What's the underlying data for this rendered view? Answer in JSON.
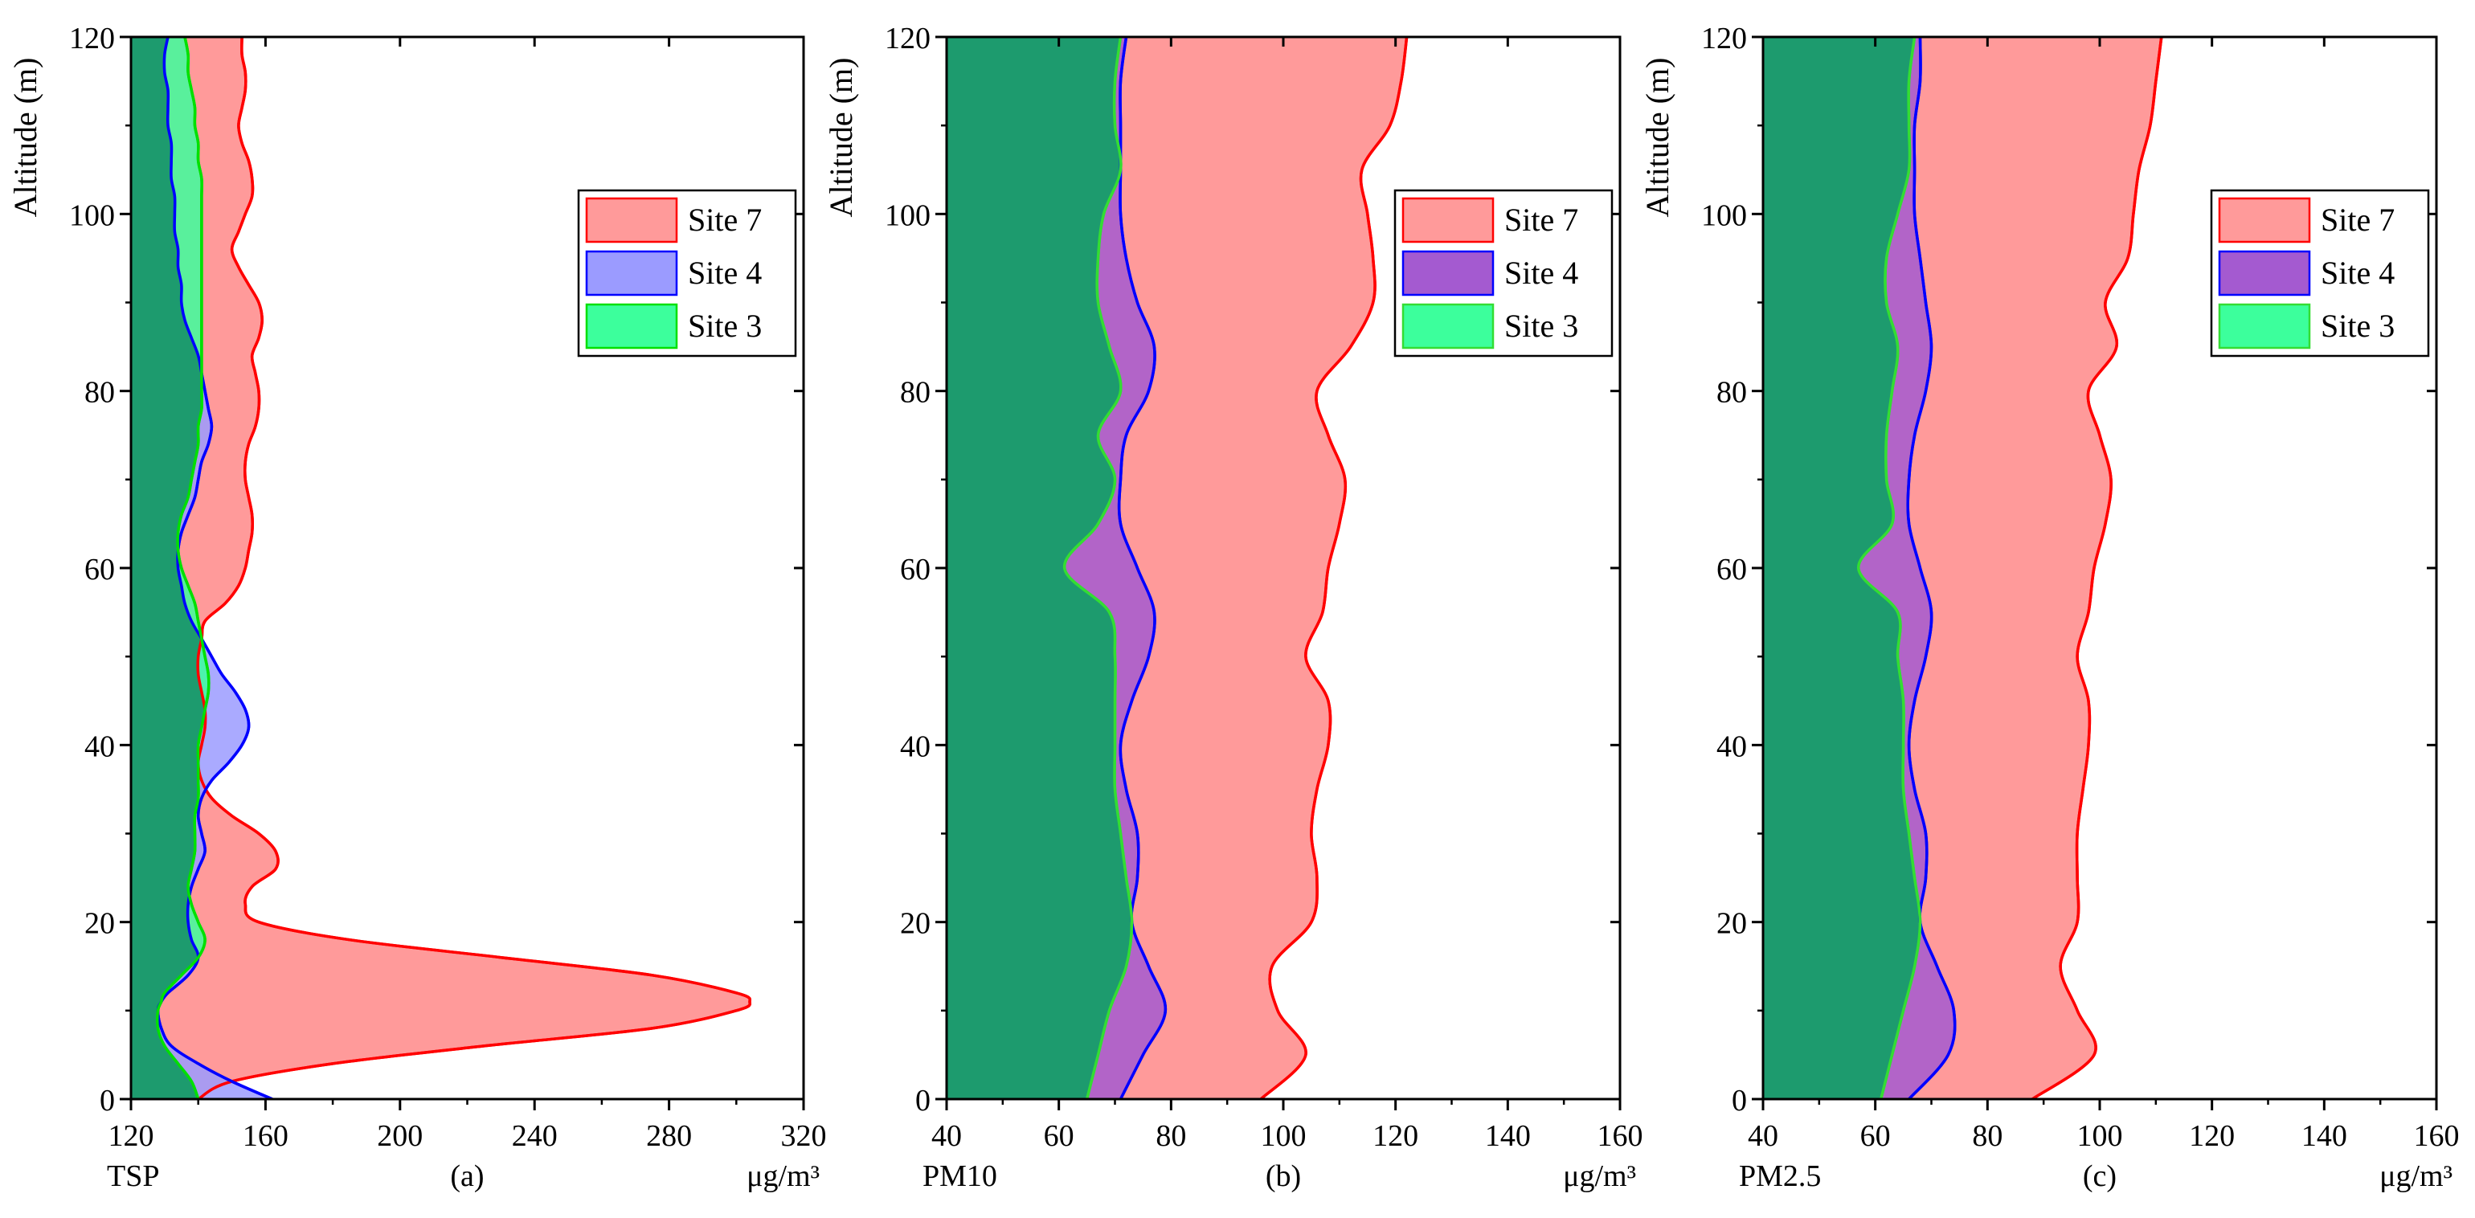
{
  "chart_data": [
    {
      "type": "area",
      "panel_label": "(a)",
      "pollutant_label": "TSP",
      "unit_label": "μg/m³",
      "ylabel": "Altitude (m)",
      "xlim": [
        120,
        320
      ],
      "ylim": [
        0,
        120
      ],
      "xticks": [
        "120",
        "160",
        "200",
        "240",
        "280",
        "320"
      ],
      "yticks": [
        "0",
        "20",
        "40",
        "60",
        "80",
        "100",
        "120"
      ],
      "legend": [
        "Site 7",
        "Site 4",
        "Site 3"
      ],
      "legend_position": "top-right",
      "altitude": [
        0,
        2,
        4,
        6,
        8,
        10,
        11,
        12,
        14,
        16,
        18,
        20,
        22,
        24,
        26,
        28,
        30,
        32,
        34,
        36,
        38,
        40,
        42,
        44,
        46,
        48,
        50,
        52,
        54,
        56,
        58,
        60,
        62,
        64,
        66,
        68,
        70,
        72,
        74,
        76,
        78,
        80,
        82,
        84,
        86,
        88,
        90,
        92,
        94,
        96,
        98,
        100,
        102,
        104,
        106,
        108,
        110,
        112,
        114,
        116,
        118,
        120
      ],
      "series": [
        {
          "name": "Site 7",
          "color": "#ff9a9a",
          "stroke": "#ff0000",
          "values": [
            140,
            150,
            180,
            225,
            275,
            300,
            304,
            300,
            275,
            230,
            185,
            158,
            154,
            156,
            163,
            163,
            158,
            150,
            144,
            141,
            140,
            141,
            142,
            142,
            141,
            140,
            140,
            141,
            142,
            148,
            152,
            154,
            155,
            156,
            156,
            155,
            154,
            154,
            155,
            157,
            158,
            158,
            157,
            156,
            158,
            159,
            158,
            155,
            152,
            150,
            152,
            154,
            156,
            156,
            155,
            153,
            152,
            153,
            154,
            154,
            153,
            153
          ]
        },
        {
          "name": "Site 4",
          "color": "#9b9bff",
          "stroke": "#0000ff",
          "values": [
            162,
            150,
            140,
            132,
            129,
            128,
            129,
            131,
            137,
            140,
            138,
            137,
            137,
            138,
            140,
            142,
            141,
            140,
            141,
            144,
            149,
            153,
            155,
            154,
            151,
            147,
            144,
            141,
            138,
            136,
            135,
            134,
            134,
            135,
            137,
            139,
            140,
            141,
            143,
            144,
            143,
            142,
            141,
            140,
            138,
            136,
            135,
            135,
            134,
            134,
            133,
            133,
            133,
            132,
            132,
            132,
            131,
            131,
            131,
            130,
            130,
            131
          ]
        },
        {
          "name": "Site 3",
          "color": "#3cff9c",
          "stroke": "#00e000",
          "values": [
            140,
            138,
            134,
            130,
            128,
            128,
            129,
            130,
            135,
            140,
            142,
            140,
            138,
            137,
            138,
            139,
            139,
            139,
            140,
            140,
            140,
            140,
            141,
            142,
            143,
            143,
            142,
            141,
            140,
            139,
            137,
            135,
            134,
            134,
            135,
            137,
            138,
            139,
            140,
            140,
            141,
            141,
            141,
            141,
            141,
            141,
            141,
            141,
            141,
            141,
            141,
            141,
            141,
            141,
            140,
            140,
            139,
            139,
            138,
            137,
            137,
            136
          ]
        }
      ]
    },
    {
      "type": "area",
      "panel_label": "(b)",
      "pollutant_label": "PM10",
      "unit_label": "μg/m³",
      "ylabel": "Altitude (m)",
      "xlim": [
        40,
        160
      ],
      "ylim": [
        0,
        120
      ],
      "xticks": [
        "40",
        "60",
        "80",
        "100",
        "120",
        "140",
        "160"
      ],
      "yticks": [
        "0",
        "20",
        "40",
        "60",
        "80",
        "100",
        "120"
      ],
      "legend": [
        "Site 7",
        "Site 4",
        "Site 3"
      ],
      "legend_position": "top-right",
      "altitude": [
        0,
        5,
        10,
        15,
        20,
        25,
        30,
        35,
        40,
        45,
        50,
        55,
        60,
        65,
        70,
        75,
        80,
        85,
        90,
        95,
        100,
        105,
        110,
        115,
        120
      ],
      "series": [
        {
          "name": "Site 7",
          "color": "#ff9a9a",
          "stroke": "#ff0000",
          "values": [
            96,
            104,
            99,
            98,
            105,
            106,
            105,
            106,
            108,
            108,
            104,
            107,
            108,
            110,
            111,
            108,
            106,
            112,
            116,
            116,
            115,
            114,
            119,
            121,
            122
          ]
        },
        {
          "name": "Site 4",
          "color": "#a45ad0",
          "stroke": "#0000ff",
          "values": [
            71,
            75,
            79,
            76,
            73,
            74,
            74,
            72,
            71,
            73,
            76,
            77,
            74,
            71,
            71,
            72,
            76,
            77,
            74,
            72,
            71,
            71,
            71,
            71,
            72
          ]
        },
        {
          "name": "Site 3",
          "color": "#3cff9c",
          "stroke": "#33dd33",
          "values": [
            65,
            67,
            69,
            72,
            73,
            72,
            71,
            70,
            70,
            70,
            70,
            69,
            61,
            67,
            70,
            67,
            71,
            69,
            67,
            67,
            68,
            71,
            70,
            70,
            71
          ]
        }
      ]
    },
    {
      "type": "area",
      "panel_label": "(c)",
      "pollutant_label": "PM2.5",
      "unit_label": "μg/m³",
      "ylabel": "Altitude (m)",
      "xlim": [
        40,
        160
      ],
      "ylim": [
        0,
        120
      ],
      "xticks": [
        "40",
        "60",
        "80",
        "100",
        "120",
        "140",
        "160"
      ],
      "yticks": [
        "0",
        "20",
        "40",
        "60",
        "80",
        "100",
        "120"
      ],
      "legend": [
        "Site 7",
        "Site 4",
        "Site 3"
      ],
      "legend_position": "top-right",
      "altitude": [
        0,
        5,
        10,
        15,
        20,
        25,
        30,
        35,
        40,
        45,
        50,
        55,
        60,
        65,
        70,
        75,
        80,
        85,
        90,
        95,
        100,
        105,
        110,
        115,
        120
      ],
      "series": [
        {
          "name": "Site 7",
          "color": "#ff9a9a",
          "stroke": "#ff0000",
          "values": [
            88,
            99,
            96,
            93,
            96,
            96,
            96,
            97,
            98,
            98,
            96,
            98,
            99,
            101,
            102,
            100,
            98,
            103,
            101,
            105,
            106,
            107,
            109,
            110,
            111
          ]
        },
        {
          "name": "Site 4",
          "color": "#a45ad0",
          "stroke": "#0000ff",
          "values": [
            66,
            73,
            74,
            71,
            68,
            69,
            69,
            67,
            66,
            67,
            69,
            70,
            68,
            66,
            66,
            67,
            69,
            70,
            69,
            68,
            67,
            67,
            67,
            68,
            68
          ]
        },
        {
          "name": "Site 3",
          "color": "#3cff9c",
          "stroke": "#33dd33",
          "values": [
            61,
            63,
            65,
            67,
            68,
            67,
            66,
            65,
            65,
            65,
            64,
            64,
            57,
            63,
            62,
            62,
            63,
            64,
            62,
            62,
            64,
            66,
            66,
            66,
            67
          ]
        }
      ]
    }
  ],
  "colors": {
    "background_fill": "#1d9b6e",
    "axis": "#000000"
  }
}
